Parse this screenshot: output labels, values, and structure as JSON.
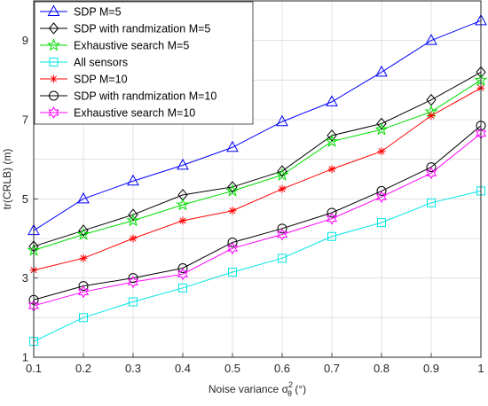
{
  "chart_data": {
    "type": "line",
    "title": "",
    "xlabel": "Noise variance σ",
    "xlabel_sup": "2",
    "xlabel_sub": "θ",
    "xlabel_unit": " (°)",
    "ylabel": "tr(CRLB) (m)",
    "x": [
      0.1,
      0.2,
      0.3,
      0.4,
      0.5,
      0.6,
      0.7,
      0.8,
      0.9,
      1.0
    ],
    "x_ticks": [
      "0.1",
      "0.2",
      "0.3",
      "0.4",
      "0.5",
      "0.6",
      "0.7",
      "0.8",
      "0.9",
      "1"
    ],
    "y_ticks": [
      "1",
      "3",
      "5",
      "7",
      "9"
    ],
    "xlim": [
      0.1,
      1.0
    ],
    "ylim": [
      1,
      10
    ],
    "grid": true,
    "legend_position": "top-left",
    "series": [
      {
        "name": "SDP M=5",
        "color": "#0000ff",
        "marker": "triangle",
        "values": [
          4.2,
          5.0,
          5.45,
          5.85,
          6.3,
          6.95,
          7.45,
          8.2,
          9.0,
          9.5
        ]
      },
      {
        "name": "SDP with randmization M=5",
        "color": "#000000",
        "marker": "diamond",
        "values": [
          3.8,
          4.2,
          4.6,
          5.1,
          5.3,
          5.7,
          6.6,
          6.9,
          7.5,
          8.2
        ]
      },
      {
        "name": "Exhaustive search M=5",
        "color": "#00dd00",
        "marker": "star",
        "values": [
          3.7,
          4.1,
          4.45,
          4.85,
          5.2,
          5.6,
          6.45,
          6.75,
          7.2,
          8.0
        ]
      },
      {
        "name": "All sensors",
        "color": "#00e5e5",
        "marker": "square",
        "values": [
          1.4,
          2.0,
          2.4,
          2.75,
          3.15,
          3.5,
          4.05,
          4.4,
          4.9,
          5.2
        ]
      },
      {
        "name": "SDP M=10",
        "color": "#ff0000",
        "marker": "asterisk",
        "values": [
          3.2,
          3.5,
          4.0,
          4.45,
          4.7,
          5.25,
          5.75,
          6.2,
          7.1,
          7.8
        ]
      },
      {
        "name": "SDP with randmization M=10",
        "color": "#000000",
        "marker": "circle",
        "values": [
          2.45,
          2.8,
          3.0,
          3.25,
          3.9,
          4.25,
          4.65,
          5.2,
          5.8,
          6.85
        ]
      },
      {
        "name": "Exhaustive search M=10",
        "color": "#ff00ff",
        "marker": "hexagram",
        "values": [
          2.3,
          2.65,
          2.9,
          3.1,
          3.75,
          4.1,
          4.5,
          5.05,
          5.65,
          6.65
        ]
      }
    ]
  }
}
